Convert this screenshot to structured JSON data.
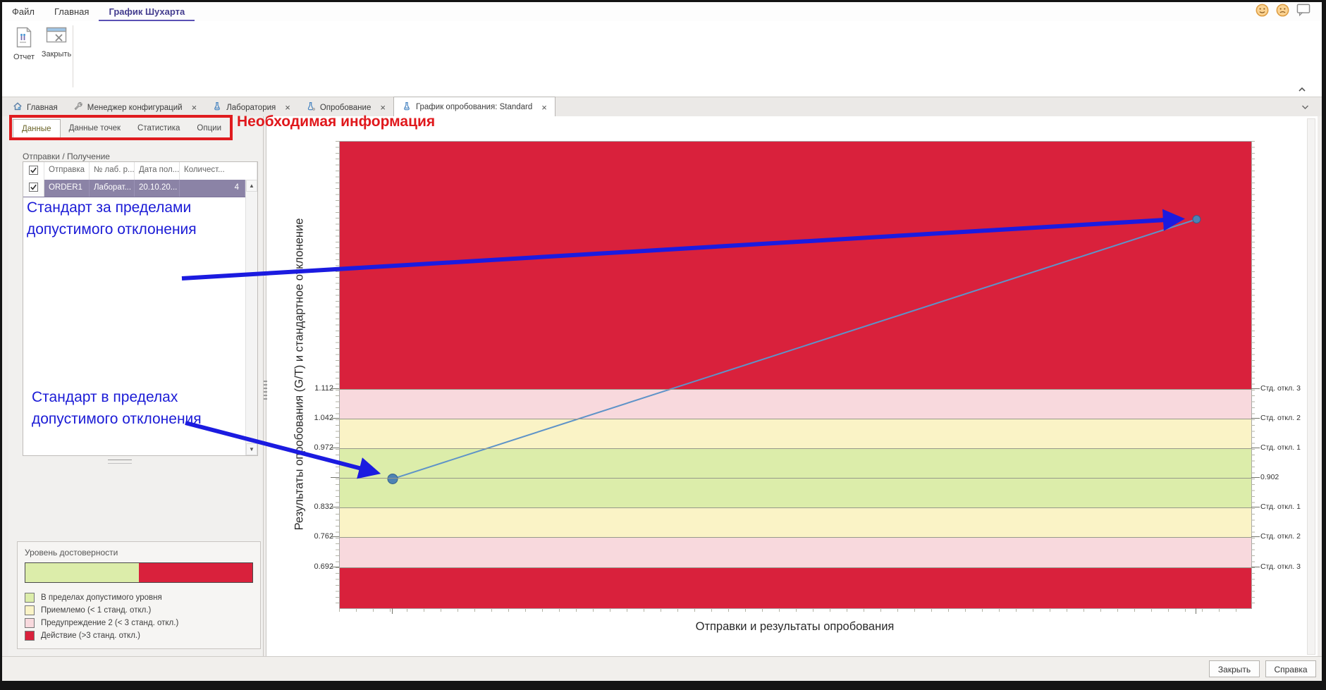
{
  "ribbon": {
    "menu": [
      {
        "label": "Файл",
        "active": false
      },
      {
        "label": "Главная",
        "active": false
      },
      {
        "label": "График Шухарта",
        "active": true
      }
    ],
    "buttons": [
      {
        "label": "Отчет",
        "icon": "report-icon"
      },
      {
        "label": "Закрыть",
        "icon": "close-window-icon"
      }
    ],
    "window_icons": [
      "happy-face-icon",
      "sad-face-icon",
      "feedback-icon"
    ],
    "accent_color": "#5a51b5"
  },
  "doc_tabs": [
    {
      "label": "Главная",
      "icon": "home-icon",
      "closable": false,
      "active": false
    },
    {
      "label": "Менеджер конфигураций",
      "icon": "wrench-icon",
      "closable": true,
      "active": false
    },
    {
      "label": "Лаборатория",
      "icon": "flask-icon",
      "closable": true,
      "active": false
    },
    {
      "label": "Опробование",
      "icon": "flask-gear-icon",
      "closable": true,
      "active": false
    },
    {
      "label": "График опробования: Standard",
      "icon": "flask-icon",
      "closable": true,
      "active": true
    }
  ],
  "left_panel": {
    "tabs": [
      {
        "label": "Данные",
        "active": true
      },
      {
        "label": "Данные точек",
        "active": false
      },
      {
        "label": "Статистика",
        "active": false
      },
      {
        "label": "Опции",
        "active": false
      }
    ],
    "shipments": {
      "title": "Отправки / Получение",
      "columns": [
        "Отправка",
        "№ лаб. р...",
        "Дата пол...",
        "Количест..."
      ],
      "rows": [
        {
          "checked": true,
          "selected": true,
          "cells": [
            "ORDER1",
            "Лаборат...",
            "20.10.20...",
            "4"
          ]
        }
      ]
    },
    "confidence": {
      "title": "Уровень достоверности",
      "bar": [
        {
          "color": "#dcedaa",
          "fraction": 0.5
        },
        {
          "color": "#d9213c",
          "fraction": 0.5
        }
      ],
      "legend": [
        {
          "color": "#dcedaa",
          "label": "В пределах допустимого уровня"
        },
        {
          "color": "#faf3c6",
          "label": "Приемлемо (< 1 станд. откл.)"
        },
        {
          "color": "#f8d9dd",
          "label": "Предупреждение 2 (< 3 станд. откл.)"
        },
        {
          "color": "#d9213c",
          "label": "Действие (>3 станд. откл.)"
        }
      ]
    }
  },
  "chart_data": {
    "type": "line",
    "title": "",
    "ylabel": "Результаты опробования (G/T) и стандартное отклонение",
    "xlabel": "Отправки и результаты опробования",
    "y_domain": [
      0.595,
      1.695
    ],
    "center_value": 0.902,
    "std_step": 0.07,
    "grid": true,
    "bands": [
      {
        "from": 1.112,
        "to": 1.695,
        "color": "#d9213c",
        "zone": "Действие (>3 станд. откл.)"
      },
      {
        "from": 1.042,
        "to": 1.112,
        "color": "#f8d9dd",
        "zone": "Предупреждение 2 (< 3 станд. откл.)"
      },
      {
        "from": 0.972,
        "to": 1.042,
        "color": "#faf3c6",
        "zone": "Приемлемо (< 1 станд. откл.)"
      },
      {
        "from": 0.902,
        "to": 0.972,
        "color": "#dcedaa",
        "zone": "В пределах допустимого уровня"
      },
      {
        "from": 0.832,
        "to": 0.902,
        "color": "#dcedaa",
        "zone": "В пределах допустимого уровня"
      },
      {
        "from": 0.762,
        "to": 0.832,
        "color": "#faf3c6",
        "zone": "Приемлемо (< 1 станд. откл.)"
      },
      {
        "from": 0.692,
        "to": 0.762,
        "color": "#f8d9dd",
        "zone": "Предупреждение 2 (< 3 станд. откл.)"
      },
      {
        "from": 0.595,
        "to": 0.692,
        "color": "#d9213c",
        "zone": "Действие (>3 станд. откл.)"
      }
    ],
    "boundaries": [
      1.112,
      1.042,
      0.972,
      0.902,
      0.832,
      0.762,
      0.692
    ],
    "left_ticks": [
      {
        "v": 1.112,
        "label": "1.112"
      },
      {
        "v": 1.042,
        "label": "1.042"
      },
      {
        "v": 0.972,
        "label": "0.972"
      },
      {
        "v": 0.832,
        "label": "0.832"
      },
      {
        "v": 0.762,
        "label": "0.762"
      },
      {
        "v": 0.692,
        "label": "0.692"
      }
    ],
    "right_labels": [
      {
        "v": 1.112,
        "label": "Стд. откл. 3"
      },
      {
        "v": 1.042,
        "label": "Стд. откл. 2"
      },
      {
        "v": 0.972,
        "label": "Стд. откл. 1"
      },
      {
        "v": 0.902,
        "label": "0.902"
      },
      {
        "v": 0.832,
        "label": "Стд. откл. 1"
      },
      {
        "v": 0.762,
        "label": "Стд. откл. 2"
      },
      {
        "v": 0.692,
        "label": "Стд. откл. 3"
      }
    ],
    "series": [
      {
        "name": "Standard",
        "line_color": "#5e93c8",
        "point_color": "#4e82b4",
        "points": [
          {
            "x": 0.058,
            "value": 0.9,
            "r": 7
          },
          {
            "x": 0.94,
            "value": 1.512,
            "r": 5.5
          }
        ]
      }
    ]
  },
  "annotations": {
    "title": "Необходимая информация",
    "out_of_range_l1": "Стандарт за пределами",
    "out_of_range_l2": "допустимого отклонения",
    "in_range_l1": "Стандарт в пределах",
    "in_range_l2": "допустимого отклонения",
    "blue_color": "#1b1bd6",
    "red_color": "#e0181c"
  },
  "status_bar": {
    "close_label": "Закрыть",
    "help_label": "Справка"
  }
}
